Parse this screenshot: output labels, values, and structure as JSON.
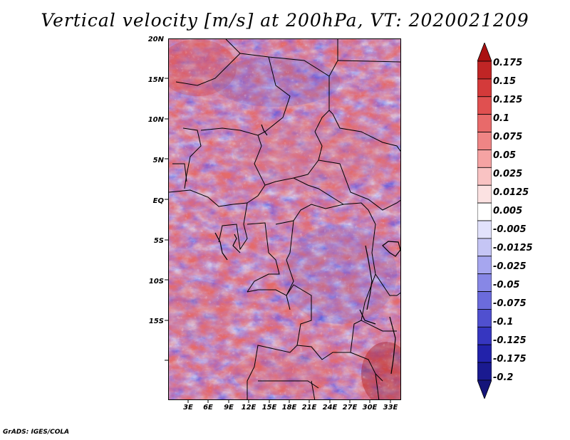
{
  "title": "Vertical velocity [m/s] at 200hPa, VT: 2020021209",
  "footer": "GrADS: IGES/COLA",
  "map": {
    "latitude_labels": [
      "20N",
      "15N",
      "10N",
      "5N",
      "EQ",
      "5S",
      "10S",
      "15S"
    ],
    "latitude_values": [
      20,
      15,
      10,
      5,
      0,
      -5,
      -10,
      -15
    ],
    "longitude_labels": [
      "3E",
      "6E",
      "9E",
      "12E",
      "15E",
      "18E",
      "21E",
      "24E",
      "27E",
      "30E",
      "33E"
    ],
    "longitude_values": [
      3,
      6,
      9,
      12,
      15,
      18,
      21,
      24,
      27,
      30,
      33
    ]
  },
  "colorbar": {
    "labels": [
      "0.175",
      "0.15",
      "0.125",
      "0.1",
      "0.075",
      "0.05",
      "0.025",
      "0.0125",
      "0.005",
      "-0.005",
      "-0.0125",
      "-0.025",
      "-0.05",
      "-0.075",
      "-0.1",
      "-0.125",
      "-0.175",
      "-0.2"
    ],
    "colors": [
      "#aa1111",
      "#c02525",
      "#d43a3a",
      "#e05050",
      "#e86a6a",
      "#ef8585",
      "#f5a3a3",
      "#f9c3c3",
      "#fce2e2",
      "#ffffff",
      "#e2e2fc",
      "#c5c5f5",
      "#a6a6ef",
      "#8787e6",
      "#6b6bdc",
      "#5050cf",
      "#3636c0",
      "#2222aa",
      "#1a1a90",
      "#14147a"
    ]
  }
}
